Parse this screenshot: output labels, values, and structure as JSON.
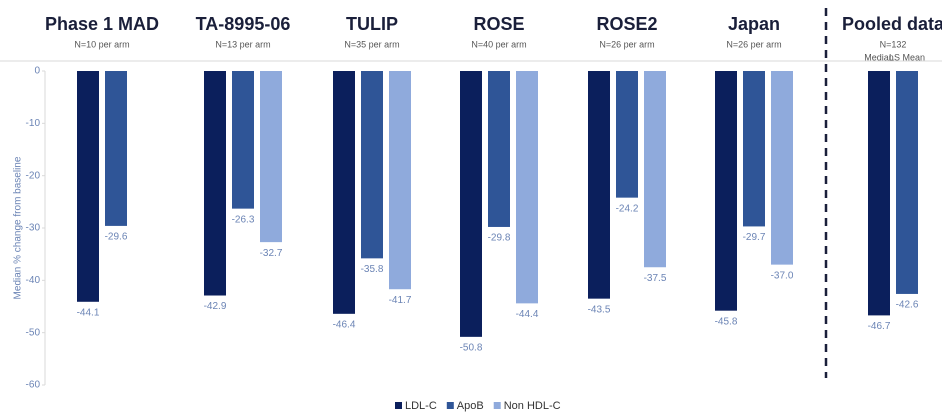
{
  "chart_data": {
    "type": "bar",
    "categories": [
      "Phase 1 MAD",
      "TA-8995-06",
      "TULIP",
      "ROSE",
      "ROSE2",
      "Japan",
      "Pooled data"
    ],
    "subtitles": [
      "N=10 per arm",
      "N=13 per arm",
      "N=35 per arm",
      "N=40 per arm",
      "N=26 per arm",
      "N=26 per arm",
      "N=132"
    ],
    "annotations": [
      "Median",
      "LS Mean"
    ],
    "y_label": "Median % change from baseline",
    "ylim": [
      -60,
      0
    ],
    "yticks": [
      0,
      -10,
      -20,
      -30,
      -40,
      -50,
      -60
    ],
    "series": [
      {
        "name": "LDL-C",
        "color": "#0b1f5c",
        "values": [
          -44.1,
          -42.9,
          -46.4,
          -50.8,
          -43.5,
          -45.8,
          -46.7
        ]
      },
      {
        "name": "ApoB",
        "color": "#2f5597",
        "values": [
          -29.6,
          -26.3,
          -35.8,
          -29.8,
          -24.2,
          -29.7,
          -42.6
        ]
      },
      {
        "name": "Non HDL-C",
        "color": "#8faadc",
        "values": [
          null,
          -32.7,
          -41.7,
          -44.4,
          -37.5,
          -37.0,
          null
        ],
        "value_labels": [
          null,
          "-32.7",
          "-41.7",
          "-44.4",
          "-37.5",
          "-37.0",
          null
        ]
      }
    ],
    "legend": "bottom"
  }
}
